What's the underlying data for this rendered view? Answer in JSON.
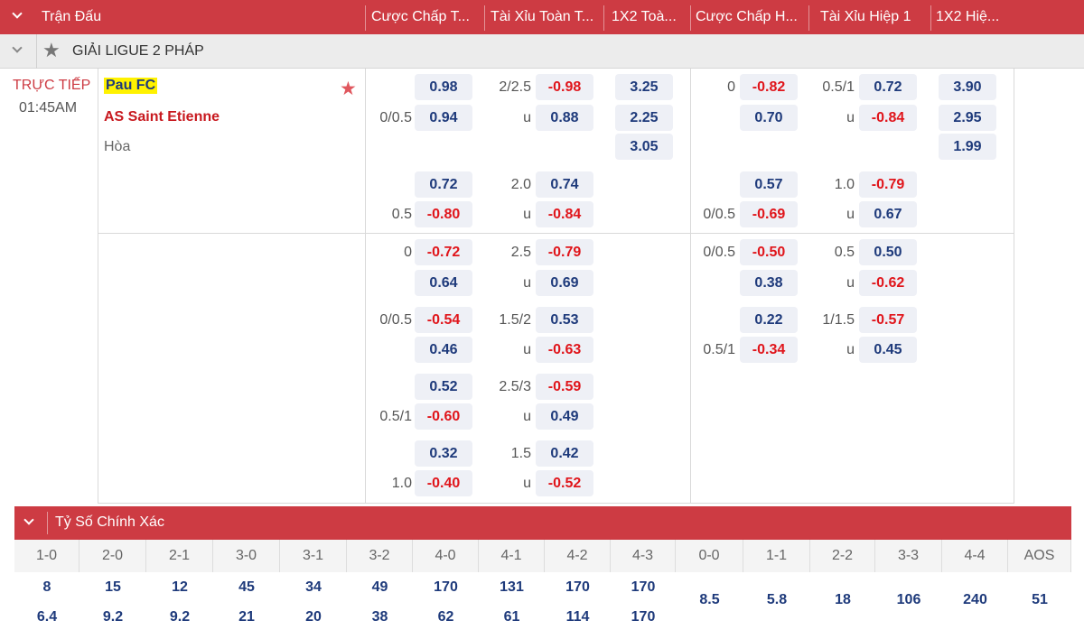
{
  "header": {
    "columns": [
      "Trận Đấu",
      "Cược Chấp T...",
      "Tài Xỉu Toàn T...",
      "1X2 Toà...",
      "Cược Chấp H...",
      "Tài Xỉu Hiệp 1",
      "1X2 Hiệ..."
    ]
  },
  "league": {
    "name": "GIẢI LIGUE 2 PHÁP"
  },
  "match": {
    "status": "TRỰC TIẾP",
    "time": "01:45AM",
    "home": "Pau FC",
    "away": "AS Saint Etienne",
    "draw": "Hòa"
  },
  "colors": {
    "header_red": "#cd3b43",
    "odd_blue": "#1e3a7b",
    "odd_red": "#e0151b",
    "odd_bg": "#eef0f6"
  },
  "rows": [
    {
      "h1": "",
      "o1": "0.98",
      "t1": "2/2.5",
      "o2": "-0.98",
      "x12": "3.25",
      "h2": "0",
      "o3": "-0.82",
      "t2": "0.5/1",
      "o4": "0.72",
      "x12h": "3.90"
    },
    {
      "h1": "0/0.5",
      "o1": "0.94",
      "t1": "u",
      "o2": "0.88",
      "x12": "2.25",
      "h2": "",
      "o3": "0.70",
      "t2": "u",
      "o4": "-0.84",
      "x12h": "2.95"
    },
    {
      "x12": "3.05",
      "x12h": "1.99"
    },
    {
      "h1": "",
      "o1": "0.72",
      "t1": "2.0",
      "o2": "0.74",
      "h2": "",
      "o3": "0.57",
      "t2": "1.0",
      "o4": "-0.79"
    },
    {
      "h1": "0.5",
      "o1": "-0.80",
      "t1": "u",
      "o2": "-0.84",
      "h2": "0/0.5",
      "o3": "-0.69",
      "t2": "u",
      "o4": "0.67"
    },
    {
      "h1": "0",
      "o1": "-0.72",
      "t1": "2.5",
      "o2": "-0.79",
      "h2": "0/0.5",
      "o3": "-0.50",
      "t2": "0.5",
      "o4": "0.50"
    },
    {
      "h1": "",
      "o1": "0.64",
      "t1": "u",
      "o2": "0.69",
      "h2": "",
      "o3": "0.38",
      "t2": "u",
      "o4": "-0.62"
    },
    {
      "h1": "0/0.5",
      "o1": "-0.54",
      "t1": "1.5/2",
      "o2": "0.53",
      "h2": "",
      "o3": "0.22",
      "t2": "1/1.5",
      "o4": "-0.57"
    },
    {
      "h1": "",
      "o1": "0.46",
      "t1": "u",
      "o2": "-0.63",
      "h2": "0.5/1",
      "o3": "-0.34",
      "t2": "u",
      "o4": "0.45"
    },
    {
      "h1": "",
      "o1": "0.52",
      "t1": "2.5/3",
      "o2": "-0.59"
    },
    {
      "h1": "0.5/1",
      "o1": "-0.60",
      "t1": "u",
      "o2": "0.49"
    },
    {
      "h1": "",
      "o1": "0.32",
      "t1": "1.5",
      "o2": "0.42"
    },
    {
      "h1": "1.0",
      "o1": "-0.40",
      "t1": "u",
      "o2": "-0.52"
    }
  ],
  "correct_score": {
    "title": "Tỷ Số Chính Xác",
    "columns": [
      {
        "score": "1-0",
        "home": "8",
        "away": "6.4"
      },
      {
        "score": "2-0",
        "home": "15",
        "away": "9.2"
      },
      {
        "score": "2-1",
        "home": "12",
        "away": "9.2"
      },
      {
        "score": "3-0",
        "home": "45",
        "away": "21"
      },
      {
        "score": "3-1",
        "home": "34",
        "away": "20"
      },
      {
        "score": "3-2",
        "home": "49",
        "away": "38"
      },
      {
        "score": "4-0",
        "home": "170",
        "away": "62"
      },
      {
        "score": "4-1",
        "home": "131",
        "away": "61"
      },
      {
        "score": "4-2",
        "home": "170",
        "away": "114"
      },
      {
        "score": "4-3",
        "home": "170",
        "away": "170"
      },
      {
        "score": "0-0",
        "single": "8.5"
      },
      {
        "score": "1-1",
        "single": "5.8"
      },
      {
        "score": "2-2",
        "single": "18"
      },
      {
        "score": "3-3",
        "single": "106"
      },
      {
        "score": "4-4",
        "single": "240"
      },
      {
        "score": "AOS",
        "single": "51"
      }
    ]
  }
}
